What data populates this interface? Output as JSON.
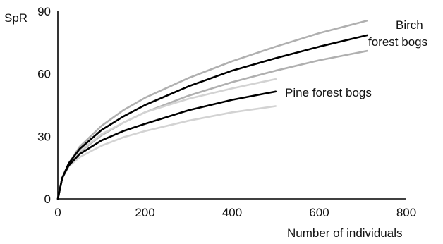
{
  "chart_data": {
    "type": "line",
    "title": "",
    "xlabel": "Number of individuals",
    "ylabel": "SpR",
    "xlim": [
      0,
      800
    ],
    "ylim": [
      0,
      90
    ],
    "x_ticks": [
      0,
      200,
      400,
      600,
      800
    ],
    "y_ticks": [
      0,
      30,
      60,
      90
    ],
    "grid": false,
    "annotations": [
      {
        "text": "Birch",
        "series": "birch"
      },
      {
        "text": "forest bogs",
        "series": "birch"
      },
      {
        "text": "Pine forest bogs",
        "series": "pine"
      }
    ],
    "series": [
      {
        "id": "birch-upper",
        "role": "confidence-bound",
        "color": "#b0b0b0",
        "x": [
          0,
          10,
          25,
          50,
          100,
          150,
          200,
          300,
          400,
          500,
          600,
          710
        ],
        "y": [
          0,
          10,
          17,
          25,
          35,
          42.5,
          48.5,
          58,
          66,
          73,
          79.5,
          85.5
        ]
      },
      {
        "id": "birch",
        "role": "mean",
        "color": "#000000",
        "x": [
          0,
          10,
          25,
          50,
          100,
          150,
          200,
          300,
          400,
          500,
          600,
          710
        ],
        "y": [
          0,
          10,
          17,
          24,
          33,
          39.5,
          45,
          54,
          61.5,
          67.5,
          73,
          78.5
        ]
      },
      {
        "id": "birch-lower",
        "role": "confidence-bound",
        "color": "#b0b0b0",
        "x": [
          0,
          10,
          25,
          50,
          100,
          150,
          200,
          300,
          400,
          500,
          600,
          710
        ],
        "y": [
          0,
          10,
          16.5,
          22.5,
          30.5,
          36.5,
          41.5,
          49.5,
          56,
          61.5,
          66.5,
          71
        ]
      },
      {
        "id": "pine-upper",
        "role": "confidence-bound",
        "color": "#d3d3d3",
        "x": [
          0,
          10,
          25,
          50,
          100,
          150,
          200,
          300,
          400,
          500
        ],
        "y": [
          0,
          10,
          16.5,
          23,
          31,
          36.5,
          41.5,
          48,
          53,
          57.5
        ]
      },
      {
        "id": "pine",
        "role": "mean",
        "color": "#000000",
        "x": [
          0,
          10,
          25,
          50,
          100,
          150,
          200,
          300,
          400,
          500
        ],
        "y": [
          0,
          10,
          16,
          21.5,
          28,
          32.5,
          36,
          42.5,
          47.5,
          51.5
        ]
      },
      {
        "id": "pine-lower",
        "role": "confidence-bound",
        "color": "#d3d3d3",
        "x": [
          0,
          10,
          25,
          50,
          100,
          150,
          200,
          300,
          400,
          500
        ],
        "y": [
          0,
          10,
          15.5,
          20,
          25.5,
          29.5,
          32.5,
          37.5,
          41.5,
          44.5
        ]
      }
    ]
  }
}
